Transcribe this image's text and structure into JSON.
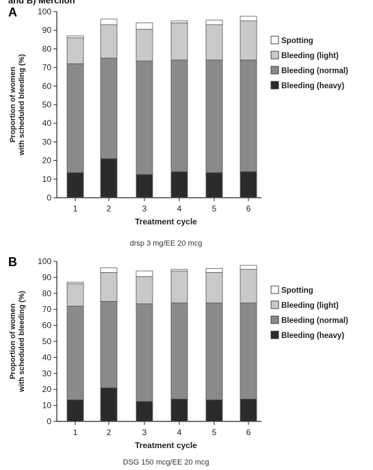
{
  "page": {
    "title": "and B) Mercilon"
  },
  "colors": {
    "heavy": "#2b2b2b",
    "normal": "#8a8a8a",
    "light": "#c9c9c9",
    "spotting": "#ffffff",
    "outline": "#555555"
  },
  "chart_data": [
    {
      "type": "bar",
      "stacked": true,
      "panel_label": "A",
      "categories": [
        "1",
        "2",
        "3",
        "4",
        "5",
        "6"
      ],
      "series": [
        {
          "name": "Bleeding (heavy)",
          "values": [
            13.5,
            21,
            12.5,
            14,
            13.5,
            14
          ]
        },
        {
          "name": "Bleeding (normal)",
          "values": [
            58.5,
            54,
            61,
            60,
            60.5,
            60
          ]
        },
        {
          "name": "Bleeding (light)",
          "values": [
            14,
            18,
            17,
            20,
            19,
            21
          ]
        },
        {
          "name": "Spotting",
          "values": [
            1,
            3,
            3.5,
            1,
            2.5,
            2.5
          ]
        }
      ],
      "xlabel": "Treatment cycle",
      "ylabel": [
        "Proportion of women",
        "with scheduled bleeding (%)"
      ],
      "yticks": [
        "0",
        "10",
        "20",
        "30",
        "40",
        "50",
        "60",
        "70",
        "80",
        "90",
        "100"
      ],
      "ylim": [
        0,
        100
      ],
      "caption": "drsp 3 mg/EE 20 mcg",
      "legend": [
        "Spotting",
        "Bleeding (light)",
        "Bleeding (normal)",
        "Bleeding (heavy)"
      ],
      "legend_position": "right",
      "grid": false
    },
    {
      "type": "bar",
      "stacked": true,
      "panel_label": "B",
      "categories": [
        "1",
        "2",
        "3",
        "4",
        "5",
        "6"
      ],
      "series": [
        {
          "name": "Bleeding (heavy)",
          "values": [
            13.5,
            21,
            12.5,
            14,
            13.5,
            14
          ]
        },
        {
          "name": "Bleeding (normal)",
          "values": [
            58.5,
            54,
            61,
            60,
            60.5,
            60
          ]
        },
        {
          "name": "Bleeding (light)",
          "values": [
            14,
            18,
            17,
            20,
            19,
            21
          ]
        },
        {
          "name": "Spotting",
          "values": [
            1,
            3,
            3.5,
            1,
            2.5,
            2.5
          ]
        }
      ],
      "xlabel": "Treatment cycle",
      "ylabel": [
        "Proportion of women",
        "with scheduled bleeding (%)"
      ],
      "yticks": [
        "0",
        "10",
        "20",
        "30",
        "40",
        "50",
        "60",
        "70",
        "80",
        "90",
        "100"
      ],
      "ylim": [
        0,
        100
      ],
      "caption": "DSG 150 mcg/EE 20 mcg",
      "legend": [
        "Spotting",
        "Bleeding (light)",
        "Bleeding (normal)",
        "Bleeding (heavy)"
      ],
      "legend_position": "right",
      "grid": false
    }
  ]
}
